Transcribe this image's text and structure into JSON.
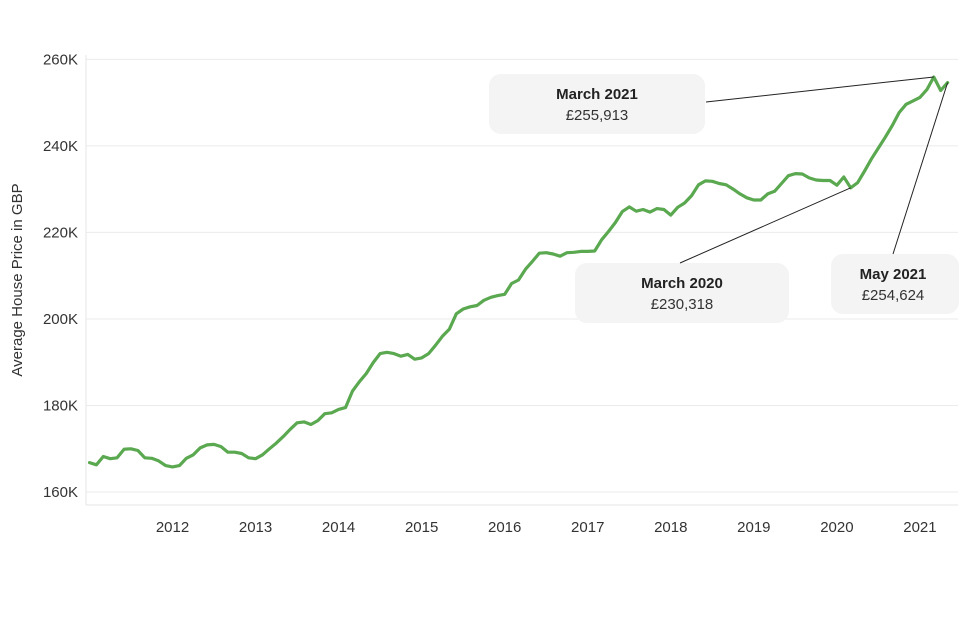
{
  "chart_data": {
    "type": "line",
    "ylabel": "Average House Price in GBP",
    "ylim": [
      157000,
      261000
    ],
    "yticks": [
      {
        "value": 160000,
        "label": "160K"
      },
      {
        "value": 180000,
        "label": "180K"
      },
      {
        "value": 200000,
        "label": "200K"
      },
      {
        "value": 220000,
        "label": "220K"
      },
      {
        "value": 240000,
        "label": "240K"
      },
      {
        "value": 260000,
        "label": "260K"
      }
    ],
    "xlim": [
      "2011-01",
      "2021-06"
    ],
    "xticks": [
      {
        "value": "2012-01",
        "label": "2012"
      },
      {
        "value": "2013-01",
        "label": "2013"
      },
      {
        "value": "2014-01",
        "label": "2014"
      },
      {
        "value": "2015-01",
        "label": "2015"
      },
      {
        "value": "2016-01",
        "label": "2016"
      },
      {
        "value": "2017-01",
        "label": "2017"
      },
      {
        "value": "2018-01",
        "label": "2018"
      },
      {
        "value": "2019-01",
        "label": "2019"
      },
      {
        "value": "2020-01",
        "label": "2020"
      },
      {
        "value": "2021-01",
        "label": "2021"
      }
    ],
    "grid": true,
    "series": [
      {
        "color": "#5aa84f",
        "points": [
          [
            "2011-01",
            166800
          ],
          [
            "2011-02",
            166300
          ],
          [
            "2011-03",
            168200
          ],
          [
            "2011-04",
            167700
          ],
          [
            "2011-05",
            167900
          ],
          [
            "2011-06",
            169900
          ],
          [
            "2011-07",
            170000
          ],
          [
            "2011-08",
            169600
          ],
          [
            "2011-09",
            167900
          ],
          [
            "2011-10",
            167800
          ],
          [
            "2011-11",
            167200
          ],
          [
            "2011-12",
            166100
          ],
          [
            "2012-01",
            165800
          ],
          [
            "2012-02",
            166100
          ],
          [
            "2012-03",
            167800
          ],
          [
            "2012-04",
            168600
          ],
          [
            "2012-05",
            170200
          ],
          [
            "2012-06",
            170900
          ],
          [
            "2012-07",
            171000
          ],
          [
            "2012-08",
            170500
          ],
          [
            "2012-09",
            169200
          ],
          [
            "2012-10",
            169200
          ],
          [
            "2012-11",
            168900
          ],
          [
            "2012-12",
            167900
          ],
          [
            "2013-01",
            167700
          ],
          [
            "2013-02",
            168600
          ],
          [
            "2013-03",
            170000
          ],
          [
            "2013-04",
            171300
          ],
          [
            "2013-05",
            172800
          ],
          [
            "2013-06",
            174500
          ],
          [
            "2013-07",
            176000
          ],
          [
            "2013-08",
            176200
          ],
          [
            "2013-09",
            175600
          ],
          [
            "2013-10",
            176500
          ],
          [
            "2013-11",
            178100
          ],
          [
            "2013-12",
            178300
          ],
          [
            "2014-01",
            179100
          ],
          [
            "2014-02",
            179500
          ],
          [
            "2014-03",
            183300
          ],
          [
            "2014-04",
            185500
          ],
          [
            "2014-05",
            187400
          ],
          [
            "2014-06",
            189900
          ],
          [
            "2014-07",
            192000
          ],
          [
            "2014-08",
            192300
          ],
          [
            "2014-09",
            192000
          ],
          [
            "2014-10",
            191400
          ],
          [
            "2014-11",
            191800
          ],
          [
            "2014-12",
            190700
          ],
          [
            "2015-01",
            191000
          ],
          [
            "2015-02",
            192000
          ],
          [
            "2015-03",
            193900
          ],
          [
            "2015-04",
            196000
          ],
          [
            "2015-05",
            197600
          ],
          [
            "2015-06",
            201200
          ],
          [
            "2015-07",
            202300
          ],
          [
            "2015-08",
            202800
          ],
          [
            "2015-09",
            203100
          ],
          [
            "2015-10",
            204300
          ],
          [
            "2015-11",
            205000
          ],
          [
            "2015-12",
            205400
          ],
          [
            "2016-01",
            205700
          ],
          [
            "2016-02",
            208200
          ],
          [
            "2016-03",
            209000
          ],
          [
            "2016-04",
            211500
          ],
          [
            "2016-05",
            213300
          ],
          [
            "2016-06",
            215200
          ],
          [
            "2016-07",
            215300
          ],
          [
            "2016-08",
            215000
          ],
          [
            "2016-09",
            214500
          ],
          [
            "2016-10",
            215300
          ],
          [
            "2016-11",
            215400
          ],
          [
            "2016-12",
            215600
          ],
          [
            "2017-01",
            215600
          ],
          [
            "2017-02",
            215700
          ],
          [
            "2017-03",
            218300
          ],
          [
            "2017-04",
            220200
          ],
          [
            "2017-05",
            222300
          ],
          [
            "2017-06",
            224800
          ],
          [
            "2017-07",
            225900
          ],
          [
            "2017-08",
            224900
          ],
          [
            "2017-09",
            225300
          ],
          [
            "2017-10",
            224700
          ],
          [
            "2017-11",
            225500
          ],
          [
            "2017-12",
            225300
          ],
          [
            "2018-01",
            224000
          ],
          [
            "2018-02",
            225800
          ],
          [
            "2018-03",
            226800
          ],
          [
            "2018-04",
            228500
          ],
          [
            "2018-05",
            231000
          ],
          [
            "2018-06",
            231900
          ],
          [
            "2018-07",
            231800
          ],
          [
            "2018-08",
            231300
          ],
          [
            "2018-09",
            231000
          ],
          [
            "2018-10",
            230000
          ],
          [
            "2018-11",
            228900
          ],
          [
            "2018-12",
            228000
          ],
          [
            "2019-01",
            227500
          ],
          [
            "2019-02",
            227500
          ],
          [
            "2019-03",
            228900
          ],
          [
            "2019-04",
            229500
          ],
          [
            "2019-05",
            231300
          ],
          [
            "2019-06",
            233100
          ],
          [
            "2019-07",
            233600
          ],
          [
            "2019-08",
            233500
          ],
          [
            "2019-09",
            232600
          ],
          [
            "2019-10",
            232100
          ],
          [
            "2019-11",
            232000
          ],
          [
            "2019-12",
            232000
          ],
          [
            "2020-01",
            230900
          ],
          [
            "2020-02",
            232800
          ],
          [
            "2020-03",
            230318
          ],
          [
            "2020-04",
            231500
          ],
          [
            "2020-05",
            234200
          ],
          [
            "2020-06",
            237000
          ],
          [
            "2020-07",
            239500
          ],
          [
            "2020-08",
            242000
          ],
          [
            "2020-09",
            244700
          ],
          [
            "2020-10",
            247700
          ],
          [
            "2020-11",
            249600
          ],
          [
            "2020-12",
            250400
          ],
          [
            "2021-01",
            251200
          ],
          [
            "2021-02",
            253000
          ],
          [
            "2021-03",
            255913
          ],
          [
            "2021-04",
            252800
          ],
          [
            "2021-05",
            254624
          ]
        ]
      }
    ],
    "annotations": [
      {
        "title": "March 2021",
        "value": "£255,913",
        "point": [
          "2021-03",
          255913
        ]
      },
      {
        "title": "March 2020",
        "value": "£230,318",
        "point": [
          "2020-03",
          230318
        ]
      },
      {
        "title": "May 2021",
        "value": "£254,624",
        "point": [
          "2021-05",
          254624
        ]
      }
    ]
  }
}
